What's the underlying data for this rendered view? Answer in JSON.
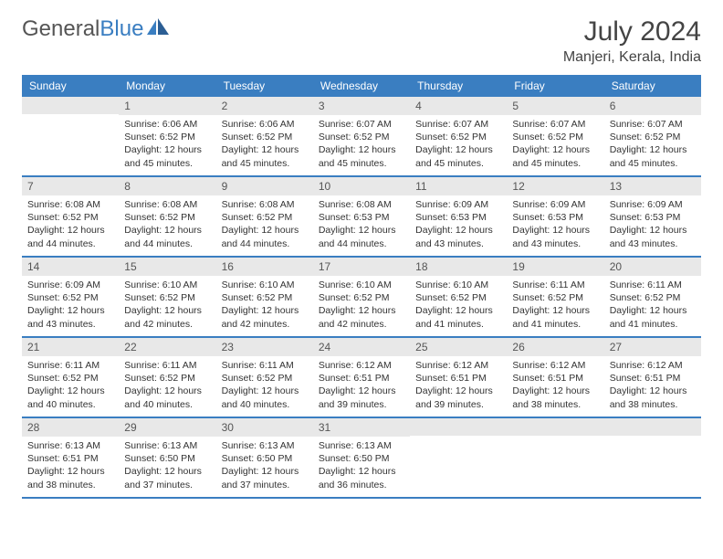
{
  "logo": {
    "word1": "General",
    "word2": "Blue"
  },
  "title": "July 2024",
  "location": "Manjeri, Kerala, India",
  "colors": {
    "header_bg": "#3a7ec1",
    "header_text": "#ffffff",
    "daynum_bg": "#e8e8e8",
    "text": "#333333",
    "rule": "#3a7ec1"
  },
  "weekdays": [
    "Sunday",
    "Monday",
    "Tuesday",
    "Wednesday",
    "Thursday",
    "Friday",
    "Saturday"
  ],
  "start_offset": 1,
  "days": [
    {
      "n": 1,
      "sunrise": "6:06 AM",
      "sunset": "6:52 PM",
      "daylight": "12 hours and 45 minutes."
    },
    {
      "n": 2,
      "sunrise": "6:06 AM",
      "sunset": "6:52 PM",
      "daylight": "12 hours and 45 minutes."
    },
    {
      "n": 3,
      "sunrise": "6:07 AM",
      "sunset": "6:52 PM",
      "daylight": "12 hours and 45 minutes."
    },
    {
      "n": 4,
      "sunrise": "6:07 AM",
      "sunset": "6:52 PM",
      "daylight": "12 hours and 45 minutes."
    },
    {
      "n": 5,
      "sunrise": "6:07 AM",
      "sunset": "6:52 PM",
      "daylight": "12 hours and 45 minutes."
    },
    {
      "n": 6,
      "sunrise": "6:07 AM",
      "sunset": "6:52 PM",
      "daylight": "12 hours and 45 minutes."
    },
    {
      "n": 7,
      "sunrise": "6:08 AM",
      "sunset": "6:52 PM",
      "daylight": "12 hours and 44 minutes."
    },
    {
      "n": 8,
      "sunrise": "6:08 AM",
      "sunset": "6:52 PM",
      "daylight": "12 hours and 44 minutes."
    },
    {
      "n": 9,
      "sunrise": "6:08 AM",
      "sunset": "6:52 PM",
      "daylight": "12 hours and 44 minutes."
    },
    {
      "n": 10,
      "sunrise": "6:08 AM",
      "sunset": "6:53 PM",
      "daylight": "12 hours and 44 minutes."
    },
    {
      "n": 11,
      "sunrise": "6:09 AM",
      "sunset": "6:53 PM",
      "daylight": "12 hours and 43 minutes."
    },
    {
      "n": 12,
      "sunrise": "6:09 AM",
      "sunset": "6:53 PM",
      "daylight": "12 hours and 43 minutes."
    },
    {
      "n": 13,
      "sunrise": "6:09 AM",
      "sunset": "6:53 PM",
      "daylight": "12 hours and 43 minutes."
    },
    {
      "n": 14,
      "sunrise": "6:09 AM",
      "sunset": "6:52 PM",
      "daylight": "12 hours and 43 minutes."
    },
    {
      "n": 15,
      "sunrise": "6:10 AM",
      "sunset": "6:52 PM",
      "daylight": "12 hours and 42 minutes."
    },
    {
      "n": 16,
      "sunrise": "6:10 AM",
      "sunset": "6:52 PM",
      "daylight": "12 hours and 42 minutes."
    },
    {
      "n": 17,
      "sunrise": "6:10 AM",
      "sunset": "6:52 PM",
      "daylight": "12 hours and 42 minutes."
    },
    {
      "n": 18,
      "sunrise": "6:10 AM",
      "sunset": "6:52 PM",
      "daylight": "12 hours and 41 minutes."
    },
    {
      "n": 19,
      "sunrise": "6:11 AM",
      "sunset": "6:52 PM",
      "daylight": "12 hours and 41 minutes."
    },
    {
      "n": 20,
      "sunrise": "6:11 AM",
      "sunset": "6:52 PM",
      "daylight": "12 hours and 41 minutes."
    },
    {
      "n": 21,
      "sunrise": "6:11 AM",
      "sunset": "6:52 PM",
      "daylight": "12 hours and 40 minutes."
    },
    {
      "n": 22,
      "sunrise": "6:11 AM",
      "sunset": "6:52 PM",
      "daylight": "12 hours and 40 minutes."
    },
    {
      "n": 23,
      "sunrise": "6:11 AM",
      "sunset": "6:52 PM",
      "daylight": "12 hours and 40 minutes."
    },
    {
      "n": 24,
      "sunrise": "6:12 AM",
      "sunset": "6:51 PM",
      "daylight": "12 hours and 39 minutes."
    },
    {
      "n": 25,
      "sunrise": "6:12 AM",
      "sunset": "6:51 PM",
      "daylight": "12 hours and 39 minutes."
    },
    {
      "n": 26,
      "sunrise": "6:12 AM",
      "sunset": "6:51 PM",
      "daylight": "12 hours and 38 minutes."
    },
    {
      "n": 27,
      "sunrise": "6:12 AM",
      "sunset": "6:51 PM",
      "daylight": "12 hours and 38 minutes."
    },
    {
      "n": 28,
      "sunrise": "6:13 AM",
      "sunset": "6:51 PM",
      "daylight": "12 hours and 38 minutes."
    },
    {
      "n": 29,
      "sunrise": "6:13 AM",
      "sunset": "6:50 PM",
      "daylight": "12 hours and 37 minutes."
    },
    {
      "n": 30,
      "sunrise": "6:13 AM",
      "sunset": "6:50 PM",
      "daylight": "12 hours and 37 minutes."
    },
    {
      "n": 31,
      "sunrise": "6:13 AM",
      "sunset": "6:50 PM",
      "daylight": "12 hours and 36 minutes."
    }
  ],
  "labels": {
    "sunrise": "Sunrise:",
    "sunset": "Sunset:",
    "daylight": "Daylight:"
  }
}
